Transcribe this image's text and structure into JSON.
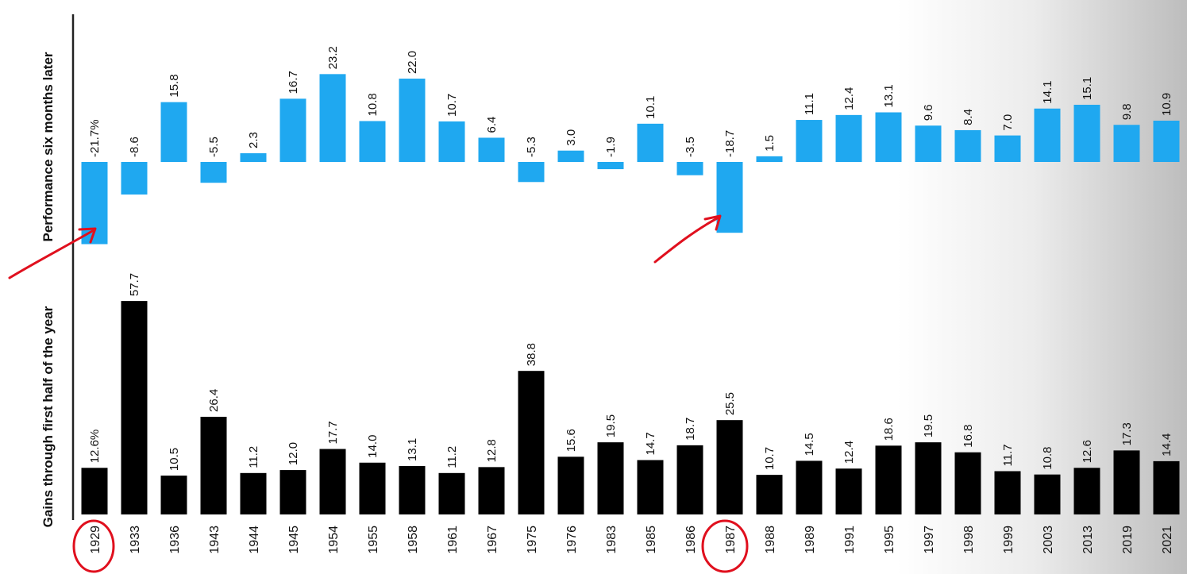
{
  "chart_data": [
    {
      "type": "bar",
      "ylabel": "Performance six months later",
      "categories": [
        "1929",
        "1933",
        "1936",
        "1943",
        "1944",
        "1945",
        "1954",
        "1955",
        "1958",
        "1961",
        "1967",
        "1975",
        "1976",
        "1983",
        "1985",
        "1986",
        "1987",
        "1988",
        "1989",
        "1991",
        "1995",
        "1997",
        "1998",
        "1999",
        "2003",
        "2013",
        "2019",
        "2021"
      ],
      "values": [
        -21.7,
        -8.6,
        15.8,
        -5.5,
        2.3,
        16.7,
        23.2,
        10.8,
        22.0,
        10.7,
        6.4,
        -5.3,
        3.0,
        -1.9,
        10.1,
        -3.5,
        -18.7,
        1.5,
        11.1,
        12.4,
        13.1,
        9.6,
        8.4,
        7.0,
        14.1,
        15.1,
        9.8,
        10.9
      ],
      "labels": [
        "-21.7%",
        "-8.6",
        "15.8",
        "-5.5",
        "2.3",
        "16.7",
        "23.2",
        "10.8",
        "22.0",
        "10.7",
        "6.4",
        "-5.3",
        "3.0",
        "-1.9",
        "10.1",
        "-3.5",
        "-18.7",
        "1.5",
        "11.1",
        "12.4",
        "13.1",
        "9.6",
        "8.4",
        "7.0",
        "14.1",
        "15.1",
        "9.8",
        "10.9"
      ],
      "color": "#1fa8f0"
    },
    {
      "type": "bar",
      "ylabel": "Gains through first half of the year",
      "categories": [
        "1929",
        "1933",
        "1936",
        "1943",
        "1944",
        "1945",
        "1954",
        "1955",
        "1958",
        "1961",
        "1967",
        "1975",
        "1976",
        "1983",
        "1985",
        "1986",
        "1987",
        "1988",
        "1989",
        "1991",
        "1995",
        "1997",
        "1998",
        "1999",
        "2003",
        "2013",
        "2019",
        "2021"
      ],
      "values": [
        12.6,
        57.7,
        10.5,
        26.4,
        11.2,
        12.0,
        17.7,
        14.0,
        13.1,
        11.2,
        12.8,
        38.8,
        15.6,
        19.5,
        14.7,
        18.7,
        25.5,
        10.7,
        14.5,
        12.4,
        18.6,
        19.5,
        16.8,
        11.7,
        10.8,
        12.6,
        17.3,
        14.4
      ],
      "labels": [
        "12.6%",
        "57.7",
        "10.5",
        "26.4",
        "11.2",
        "12.0",
        "17.7",
        "14.0",
        "13.1",
        "11.2",
        "12.8",
        "38.8",
        "15.6",
        "19.5",
        "14.7",
        "18.7",
        "25.5",
        "10.7",
        "14.5",
        "12.4",
        "18.6",
        "19.5",
        "16.8",
        "11.7",
        "10.8",
        "12.6",
        "17.3",
        "14.4"
      ],
      "color": "#000000"
    }
  ],
  "annotations": {
    "circled_years": [
      "1929",
      "1987"
    ],
    "arrows_point_to": [
      "1929",
      "1987"
    ],
    "annotation_color": "#e0101e"
  }
}
